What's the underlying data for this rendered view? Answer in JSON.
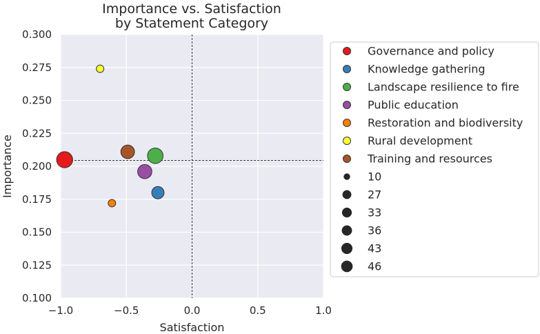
{
  "chart_data": {
    "type": "scatter",
    "title": "Importance vs. Satisfaction\nby Statement Category",
    "xlabel": "Satisfaction",
    "ylabel": "Importance",
    "xlim": [
      -1.0,
      1.0
    ],
    "ylim": [
      0.1,
      0.3
    ],
    "xticks": [
      -1.0,
      -0.5,
      0.0,
      0.5,
      1.0
    ],
    "xtick_labels": [
      "−1.0",
      "−0.5",
      "0.0",
      "0.5",
      "1.0"
    ],
    "yticks": [
      0.1,
      0.125,
      0.15,
      0.175,
      0.2,
      0.225,
      0.25,
      0.275,
      0.3
    ],
    "ytick_labels": [
      "0.100",
      "0.125",
      "0.150",
      "0.175",
      "0.200",
      "0.225",
      "0.250",
      "0.275",
      "0.300"
    ],
    "grid": true,
    "reference_lines": {
      "x": 0.0,
      "y": 0.2045
    },
    "legend_position": "outside-right",
    "points": [
      {
        "category": "Governance and policy",
        "x": -0.97,
        "y": 0.205,
        "size": 46,
        "color": "#e41a1c"
      },
      {
        "category": "Knowledge gathering",
        "x": -0.26,
        "y": 0.18,
        "size": 27,
        "color": "#377eb8"
      },
      {
        "category": "Landscape resilience to fire",
        "x": -0.28,
        "y": 0.208,
        "size": 43,
        "color": "#4daf4a"
      },
      {
        "category": "Public education",
        "x": -0.36,
        "y": 0.196,
        "size": 36,
        "color": "#984ea3"
      },
      {
        "category": "Restoration and biodiversity",
        "x": -0.61,
        "y": 0.172,
        "size": 10,
        "color": "#ff7f00"
      },
      {
        "category": "Rural development",
        "x": -0.7,
        "y": 0.274,
        "size": 10,
        "color": "#ffff33"
      },
      {
        "category": "Training and resources",
        "x": -0.49,
        "y": 0.211,
        "size": 33,
        "color": "#a65628"
      }
    ],
    "size_legend": [
      {
        "label": "10",
        "size": 10
      },
      {
        "label": "27",
        "size": 27
      },
      {
        "label": "33",
        "size": 33
      },
      {
        "label": "36",
        "size": 36
      },
      {
        "label": "43",
        "size": 43
      },
      {
        "label": "46",
        "size": 46
      }
    ]
  }
}
